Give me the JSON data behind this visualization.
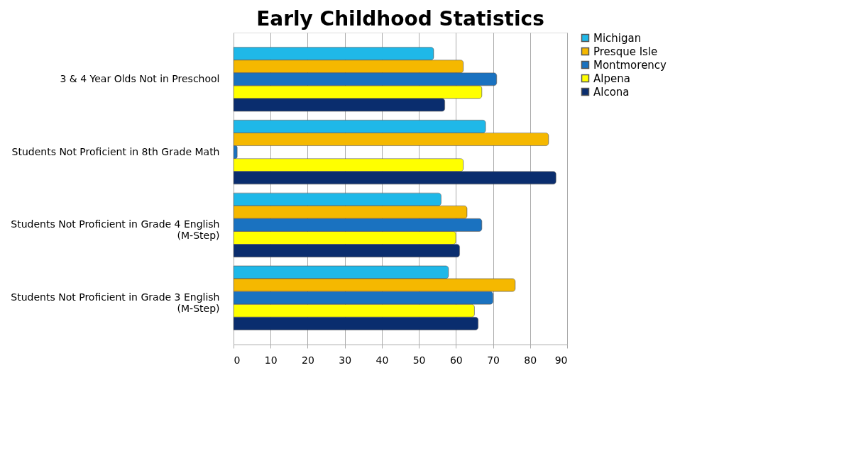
{
  "chart_data": {
    "type": "bar",
    "orientation": "horizontal",
    "title": "Early Childhood Statistics",
    "categories": [
      "3 & 4 Year Olds Not in Preschool",
      "Students Not Proficient in 8th Grade Math",
      "Students Not Proficient in Grade 4 English\n(M-Step)",
      "Students Not Proficient in Grade 3 English\n(M-Step)"
    ],
    "series": [
      {
        "name": "Michigan",
        "color": "#1fb8e8",
        "values": [
          54,
          68,
          56,
          58
        ]
      },
      {
        "name": "Presque Isle",
        "color": "#f5b800",
        "values": [
          62,
          85,
          63,
          76
        ]
      },
      {
        "name": "Montmorency",
        "color": "#1a72c0",
        "values": [
          71,
          1,
          67,
          70
        ]
      },
      {
        "name": "Alpena",
        "color": "#ffff00",
        "values": [
          67,
          62,
          60,
          65
        ]
      },
      {
        "name": "Alcona",
        "color": "#0a2d6e",
        "values": [
          57,
          87,
          61,
          66
        ]
      }
    ],
    "xlim": [
      0,
      90
    ],
    "xticks": [
      0,
      10,
      20,
      30,
      40,
      50,
      60,
      70,
      80,
      90
    ],
    "grid": "x",
    "legend": "right"
  }
}
